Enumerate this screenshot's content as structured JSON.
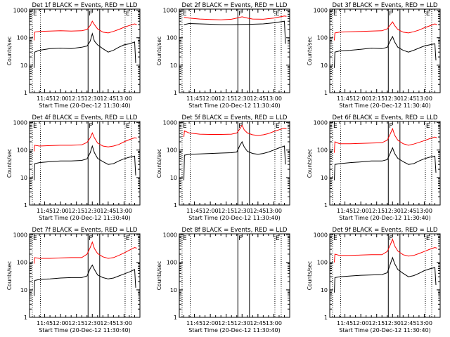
{
  "chart_data": {
    "type": "line",
    "xticks": [
      "11:45",
      "12:00",
      "12:15",
      "12:30",
      "12:45",
      "13:00"
    ],
    "xtick_minutes": [
      45,
      60,
      75,
      90,
      105,
      120
    ],
    "xlim_minutes": [
      30.67,
      135
    ],
    "yticks": [
      "1",
      "10",
      "100",
      "1000"
    ],
    "ylim": [
      1,
      1100
    ],
    "ylog": true,
    "ylabel": "Counts/sec",
    "xlabel": "Start Time (20-Dec-12 11:30:40)",
    "line_colors": {
      "events": "#000000",
      "lld": "#ff0000"
    },
    "markers": [
      {
        "label": "E",
        "minute": 33.3,
        "style": "dotted"
      },
      {
        "label": "",
        "minute": 41,
        "style": "dotted"
      },
      {
        "label": "F",
        "minute": 86,
        "style": "solid"
      },
      {
        "label": "",
        "minute": 97,
        "style": "solid"
      },
      {
        "label": "E",
        "minute": 121,
        "style": "dotted"
      },
      {
        "label": "",
        "minute": 127,
        "style": "dotted"
      }
    ],
    "panels": [
      {
        "title": "Det 1f BLACK = Events, RED = LLD",
        "events": [
          [
            35,
            8
          ],
          [
            35.5,
            30
          ],
          [
            40,
            35
          ],
          [
            50,
            40
          ],
          [
            60,
            42
          ],
          [
            70,
            40
          ],
          [
            80,
            45
          ],
          [
            85,
            50
          ],
          [
            88,
            75
          ],
          [
            90,
            140
          ],
          [
            92,
            75
          ],
          [
            95,
            55
          ],
          [
            100,
            40
          ],
          [
            105,
            30
          ],
          [
            110,
            35
          ],
          [
            115,
            45
          ],
          [
            120,
            55
          ],
          [
            125,
            60
          ],
          [
            130,
            70
          ],
          [
            131,
            12
          ]
        ],
        "lld": [
          [
            35,
            80
          ],
          [
            35.5,
            160
          ],
          [
            40,
            170
          ],
          [
            50,
            175
          ],
          [
            60,
            180
          ],
          [
            70,
            175
          ],
          [
            80,
            180
          ],
          [
            85,
            200
          ],
          [
            88,
            280
          ],
          [
            90,
            400
          ],
          [
            92,
            300
          ],
          [
            95,
            210
          ],
          [
            100,
            160
          ],
          [
            105,
            150
          ],
          [
            110,
            170
          ],
          [
            115,
            200
          ],
          [
            120,
            240
          ],
          [
            125,
            280
          ],
          [
            130,
            320
          ],
          [
            132,
            300
          ]
        ]
      },
      {
        "title": "Det 2f BLACK = Events, RED = LLD",
        "events": [
          [
            35,
            300
          ],
          [
            40,
            330
          ],
          [
            50,
            320
          ],
          [
            60,
            310
          ],
          [
            70,
            300
          ],
          [
            80,
            300
          ],
          [
            90,
            305
          ],
          [
            100,
            310
          ],
          [
            110,
            320
          ],
          [
            120,
            350
          ],
          [
            130,
            400
          ],
          [
            131,
            60
          ]
        ],
        "lld": [
          [
            35,
            550
          ],
          [
            40,
            520
          ],
          [
            50,
            480
          ],
          [
            60,
            460
          ],
          [
            70,
            450
          ],
          [
            80,
            470
          ],
          [
            85,
            520
          ],
          [
            90,
            580
          ],
          [
            95,
            520
          ],
          [
            100,
            480
          ],
          [
            110,
            470
          ],
          [
            120,
            520
          ],
          [
            130,
            620
          ],
          [
            132,
            600
          ]
        ]
      },
      {
        "title": "Det 3f BLACK = Events, RED = LLD",
        "events": [
          [
            35,
            8
          ],
          [
            35.5,
            30
          ],
          [
            40,
            33
          ],
          [
            50,
            35
          ],
          [
            60,
            38
          ],
          [
            70,
            42
          ],
          [
            80,
            40
          ],
          [
            85,
            45
          ],
          [
            88,
            80
          ],
          [
            90,
            110
          ],
          [
            92,
            70
          ],
          [
            95,
            45
          ],
          [
            100,
            35
          ],
          [
            105,
            30
          ],
          [
            110,
            35
          ],
          [
            115,
            42
          ],
          [
            120,
            50
          ],
          [
            125,
            55
          ],
          [
            130,
            60
          ],
          [
            131,
            15
          ]
        ],
        "lld": [
          [
            35,
            80
          ],
          [
            35.5,
            150
          ],
          [
            40,
            160
          ],
          [
            50,
            165
          ],
          [
            60,
            170
          ],
          [
            70,
            175
          ],
          [
            80,
            180
          ],
          [
            85,
            210
          ],
          [
            88,
            300
          ],
          [
            90,
            380
          ],
          [
            92,
            280
          ],
          [
            95,
            200
          ],
          [
            100,
            160
          ],
          [
            105,
            150
          ],
          [
            110,
            165
          ],
          [
            115,
            190
          ],
          [
            120,
            230
          ],
          [
            125,
            270
          ],
          [
            130,
            320
          ],
          [
            132,
            300
          ]
        ]
      },
      {
        "title": "Det 4f BLACK = Events, RED = LLD",
        "events": [
          [
            35,
            8
          ],
          [
            35.5,
            32
          ],
          [
            40,
            35
          ],
          [
            50,
            38
          ],
          [
            60,
            40
          ],
          [
            70,
            40
          ],
          [
            80,
            42
          ],
          [
            85,
            48
          ],
          [
            88,
            80
          ],
          [
            90,
            140
          ],
          [
            92,
            80
          ],
          [
            95,
            50
          ],
          [
            100,
            38
          ],
          [
            105,
            30
          ],
          [
            110,
            32
          ],
          [
            115,
            40
          ],
          [
            120,
            48
          ],
          [
            125,
            55
          ],
          [
            130,
            60
          ],
          [
            131,
            12
          ]
        ],
        "lld": [
          [
            35,
            90
          ],
          [
            35.5,
            150
          ],
          [
            40,
            140
          ],
          [
            50,
            145
          ],
          [
            60,
            150
          ],
          [
            70,
            150
          ],
          [
            80,
            155
          ],
          [
            85,
            190
          ],
          [
            88,
            280
          ],
          [
            90,
            420
          ],
          [
            92,
            280
          ],
          [
            95,
            180
          ],
          [
            100,
            140
          ],
          [
            105,
            130
          ],
          [
            110,
            140
          ],
          [
            115,
            160
          ],
          [
            120,
            200
          ],
          [
            125,
            240
          ],
          [
            130,
            280
          ],
          [
            132,
            270
          ]
        ]
      },
      {
        "title": "Det 5f BLACK = Events, RED = LLD",
        "events": [
          [
            35,
            8
          ],
          [
            35.5,
            65
          ],
          [
            40,
            70
          ],
          [
            50,
            72
          ],
          [
            60,
            75
          ],
          [
            70,
            78
          ],
          [
            80,
            80
          ],
          [
            85,
            85
          ],
          [
            88,
            150
          ],
          [
            90,
            200
          ],
          [
            92,
            130
          ],
          [
            95,
            90
          ],
          [
            100,
            75
          ],
          [
            105,
            70
          ],
          [
            110,
            75
          ],
          [
            115,
            85
          ],
          [
            120,
            100
          ],
          [
            125,
            120
          ],
          [
            130,
            140
          ],
          [
            131,
            30
          ]
        ],
        "lld": [
          [
            35,
            300
          ],
          [
            35.5,
            500
          ],
          [
            40,
            420
          ],
          [
            50,
            380
          ],
          [
            60,
            370
          ],
          [
            70,
            370
          ],
          [
            80,
            380
          ],
          [
            85,
            420
          ],
          [
            88,
            600
          ],
          [
            90,
            800
          ],
          [
            92,
            550
          ],
          [
            95,
            420
          ],
          [
            100,
            360
          ],
          [
            105,
            340
          ],
          [
            110,
            360
          ],
          [
            115,
            400
          ],
          [
            120,
            470
          ],
          [
            125,
            550
          ],
          [
            130,
            620
          ],
          [
            132,
            600
          ]
        ]
      },
      {
        "title": "Det 6f BLACK = Events, RED = LLD",
        "events": [
          [
            35,
            8
          ],
          [
            35.5,
            30
          ],
          [
            40,
            32
          ],
          [
            50,
            35
          ],
          [
            60,
            37
          ],
          [
            70,
            40
          ],
          [
            80,
            40
          ],
          [
            85,
            45
          ],
          [
            88,
            80
          ],
          [
            90,
            120
          ],
          [
            92,
            75
          ],
          [
            95,
            50
          ],
          [
            100,
            38
          ],
          [
            105,
            30
          ],
          [
            110,
            32
          ],
          [
            115,
            40
          ],
          [
            120,
            48
          ],
          [
            125,
            55
          ],
          [
            130,
            60
          ],
          [
            131,
            15
          ]
        ],
        "lld": [
          [
            35,
            80
          ],
          [
            35.5,
            200
          ],
          [
            40,
            170
          ],
          [
            50,
            170
          ],
          [
            60,
            175
          ],
          [
            70,
            180
          ],
          [
            80,
            185
          ],
          [
            85,
            230
          ],
          [
            88,
            400
          ],
          [
            90,
            600
          ],
          [
            92,
            350
          ],
          [
            95,
            230
          ],
          [
            100,
            170
          ],
          [
            105,
            150
          ],
          [
            110,
            165
          ],
          [
            115,
            190
          ],
          [
            120,
            220
          ],
          [
            125,
            260
          ],
          [
            130,
            300
          ],
          [
            132,
            280
          ]
        ]
      },
      {
        "title": "Det 7f BLACK = Events, RED = LLD",
        "events": [
          [
            35,
            6
          ],
          [
            35.5,
            22
          ],
          [
            40,
            24
          ],
          [
            50,
            25
          ],
          [
            60,
            27
          ],
          [
            70,
            28
          ],
          [
            80,
            28
          ],
          [
            85,
            32
          ],
          [
            88,
            60
          ],
          [
            90,
            80
          ],
          [
            92,
            55
          ],
          [
            95,
            35
          ],
          [
            100,
            28
          ],
          [
            105,
            25
          ],
          [
            110,
            27
          ],
          [
            115,
            32
          ],
          [
            120,
            38
          ],
          [
            125,
            45
          ],
          [
            130,
            55
          ],
          [
            131,
            12
          ]
        ],
        "lld": [
          [
            35,
            90
          ],
          [
            35.5,
            150
          ],
          [
            40,
            140
          ],
          [
            50,
            140
          ],
          [
            60,
            145
          ],
          [
            70,
            150
          ],
          [
            80,
            150
          ],
          [
            85,
            200
          ],
          [
            88,
            350
          ],
          [
            90,
            550
          ],
          [
            92,
            320
          ],
          [
            95,
            210
          ],
          [
            100,
            160
          ],
          [
            105,
            140
          ],
          [
            110,
            150
          ],
          [
            115,
            180
          ],
          [
            120,
            220
          ],
          [
            125,
            280
          ],
          [
            130,
            350
          ],
          [
            132,
            330
          ]
        ]
      },
      {
        "title": "Det 8f BLACK = Events, RED = LLD",
        "events": [],
        "lld": []
      },
      {
        "title": "Det 9f BLACK = Events, RED = LLD",
        "events": [
          [
            35,
            8
          ],
          [
            35.5,
            28
          ],
          [
            40,
            30
          ],
          [
            50,
            32
          ],
          [
            60,
            34
          ],
          [
            70,
            35
          ],
          [
            80,
            36
          ],
          [
            85,
            42
          ],
          [
            88,
            90
          ],
          [
            90,
            150
          ],
          [
            92,
            90
          ],
          [
            95,
            55
          ],
          [
            100,
            40
          ],
          [
            105,
            30
          ],
          [
            110,
            33
          ],
          [
            115,
            40
          ],
          [
            120,
            50
          ],
          [
            125,
            58
          ],
          [
            130,
            65
          ],
          [
            131,
            15
          ]
        ],
        "lld": [
          [
            35,
            100
          ],
          [
            35.5,
            200
          ],
          [
            40,
            180
          ],
          [
            50,
            180
          ],
          [
            60,
            185
          ],
          [
            70,
            190
          ],
          [
            80,
            190
          ],
          [
            85,
            250
          ],
          [
            88,
            450
          ],
          [
            90,
            700
          ],
          [
            92,
            400
          ],
          [
            95,
            260
          ],
          [
            100,
            190
          ],
          [
            105,
            170
          ],
          [
            110,
            180
          ],
          [
            115,
            210
          ],
          [
            120,
            250
          ],
          [
            125,
            300
          ],
          [
            130,
            350
          ],
          [
            132,
            330
          ]
        ]
      }
    ]
  }
}
